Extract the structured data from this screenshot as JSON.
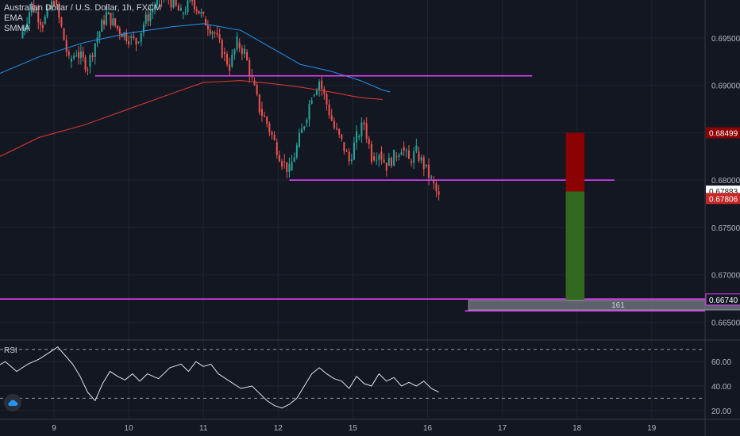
{
  "legend": {
    "symbol_title": "Australian Dollar / U.S. Dollar, 1h, FXCM",
    "indicator_1": "EMA",
    "indicator_2": "SMMA",
    "rsi_label": "RSI"
  },
  "colors": {
    "background": "#131722",
    "grid": "#1f2433",
    "up_candle": "#26a69a",
    "down_candle": "#ef5350",
    "ema": "#2196f3",
    "smma": "#e53935",
    "level": "#e040fb",
    "stop_zone": "#8b0000",
    "target_zone": "#33691e",
    "last_price_tag": "#c62828",
    "rsi_line": "#e0e3eb"
  },
  "chart_data": [
    {
      "type": "candlestick",
      "title": "Australian Dollar / U.S. Dollar, 1h, FXCM",
      "x_ticks": [
        "9",
        "10",
        "11",
        "12",
        "15",
        "16",
        "17",
        "18",
        "19"
      ],
      "y_ticks": [
        "0.69500",
        "0.69000",
        "0.68500",
        "0.68000",
        "0.67500",
        "0.67000",
        "0.66500"
      ],
      "ylim": [
        0.6632,
        0.699
      ],
      "grid": true,
      "close_path": [
        [
          8.55,
          0.695
        ],
        [
          8.7,
          0.6985
        ],
        [
          8.85,
          0.6965
        ],
        [
          9.0,
          0.699
        ],
        [
          9.1,
          0.696
        ],
        [
          9.2,
          0.6925
        ],
        [
          9.3,
          0.6935
        ],
        [
          9.45,
          0.692
        ],
        [
          9.55,
          0.6945
        ],
        [
          9.7,
          0.6975
        ],
        [
          9.85,
          0.696
        ],
        [
          10.0,
          0.695
        ],
        [
          10.1,
          0.6945
        ],
        [
          10.2,
          0.6965
        ],
        [
          10.35,
          0.6985
        ],
        [
          10.5,
          0.6995
        ],
        [
          10.7,
          0.6975
        ],
        [
          10.85,
          0.699
        ],
        [
          11.0,
          0.697
        ],
        [
          11.15,
          0.6955
        ],
        [
          11.25,
          0.6935
        ],
        [
          11.35,
          0.692
        ],
        [
          11.45,
          0.6945
        ],
        [
          11.55,
          0.6935
        ],
        [
          11.65,
          0.6905
        ],
        [
          11.75,
          0.6875
        ],
        [
          11.85,
          0.686
        ],
        [
          11.95,
          0.684
        ],
        [
          12.05,
          0.682
        ],
        [
          12.15,
          0.681
        ],
        [
          12.25,
          0.6835
        ],
        [
          12.35,
          0.686
        ],
        [
          12.45,
          0.689
        ],
        [
          12.55,
          0.6905
        ],
        [
          12.65,
          0.688
        ],
        [
          12.75,
          0.6855
        ],
        [
          12.85,
          0.684
        ],
        [
          12.95,
          0.682
        ],
        [
          13.05,
          0.6845
        ],
        [
          13.15,
          0.686
        ],
        [
          13.25,
          0.6825
        ],
        [
          13.35,
          0.683
        ],
        [
          13.45,
          0.6815
        ],
        [
          13.55,
          0.6825
        ],
        [
          13.65,
          0.6835
        ],
        [
          13.75,
          0.682
        ],
        [
          13.85,
          0.683
        ],
        [
          13.95,
          0.6815
        ],
        [
          14.05,
          0.68
        ],
        [
          14.15,
          0.6781
        ]
      ],
      "ema": [
        [
          8.2,
          0.691
        ],
        [
          8.8,
          0.693
        ],
        [
          9.4,
          0.6945
        ],
        [
          10.0,
          0.6955
        ],
        [
          10.6,
          0.6962
        ],
        [
          11.0,
          0.6965
        ],
        [
          11.5,
          0.6958
        ],
        [
          11.9,
          0.694
        ],
        [
          12.3,
          0.6922
        ],
        [
          12.7,
          0.6915
        ],
        [
          13.1,
          0.6905
        ],
        [
          13.4,
          0.6895
        ],
        [
          13.5,
          0.6893
        ]
      ],
      "smma": [
        [
          8.2,
          0.6822
        ],
        [
          8.8,
          0.6845
        ],
        [
          9.4,
          0.6858
        ],
        [
          10.0,
          0.6875
        ],
        [
          10.6,
          0.6892
        ],
        [
          11.0,
          0.6903
        ],
        [
          11.5,
          0.6905
        ],
        [
          11.9,
          0.6902
        ],
        [
          12.3,
          0.6898
        ],
        [
          12.7,
          0.6893
        ],
        [
          13.1,
          0.6887
        ],
        [
          13.4,
          0.6885
        ]
      ],
      "levels": [
        {
          "y": 0.691,
          "x_from": 9.55,
          "x_to": 15.4
        },
        {
          "y": 0.68,
          "x_from": 12.15,
          "x_to": 16.5
        },
        {
          "y": 0.66745,
          "x_from": 8.2,
          "x_to": 21.2
        },
        {
          "y": 0.6662,
          "x_from": 14.5,
          "x_to": 18.6
        }
      ],
      "position": {
        "x_from": 15.85,
        "x_to": 16.1,
        "stop_top": 0.68499,
        "entry": 0.6788,
        "target": 0.6673
      },
      "measure_box": {
        "x_from": 14.55,
        "x_to": 18.55,
        "y_top": 0.6673,
        "y_bottom": 0.6663,
        "label": "161"
      },
      "price_tags": [
        {
          "label": "0.68499",
          "y": 0.68499,
          "style": "stop"
        },
        {
          "label": "0.67883",
          "y": 0.67883,
          "style": "plain"
        },
        {
          "label": "0.67806",
          "y": 0.67806,
          "style": "last"
        },
        {
          "label": "0.66740",
          "y": 0.6674,
          "style": "level"
        }
      ]
    },
    {
      "type": "line",
      "title": "RSI",
      "y_ticks": [
        "60.00",
        "40.00",
        "20.00"
      ],
      "ylim": [
        14,
        77
      ],
      "bands": [
        70,
        30
      ],
      "values": [
        [
          8.2,
          55
        ],
        [
          8.35,
          60
        ],
        [
          8.5,
          52
        ],
        [
          8.65,
          58
        ],
        [
          8.8,
          62
        ],
        [
          8.95,
          68
        ],
        [
          9.05,
          72
        ],
        [
          9.15,
          65
        ],
        [
          9.25,
          58
        ],
        [
          9.35,
          48
        ],
        [
          9.45,
          35
        ],
        [
          9.55,
          28
        ],
        [
          9.65,
          42
        ],
        [
          9.75,
          52
        ],
        [
          9.85,
          48
        ],
        [
          9.95,
          45
        ],
        [
          10.05,
          50
        ],
        [
          10.15,
          44
        ],
        [
          10.25,
          50
        ],
        [
          10.4,
          46
        ],
        [
          10.55,
          55
        ],
        [
          10.7,
          58
        ],
        [
          10.8,
          52
        ],
        [
          10.9,
          60
        ],
        [
          11.0,
          56
        ],
        [
          11.1,
          58
        ],
        [
          11.2,
          50
        ],
        [
          11.35,
          44
        ],
        [
          11.5,
          38
        ],
        [
          11.65,
          40
        ],
        [
          11.75,
          34
        ],
        [
          11.85,
          28
        ],
        [
          11.95,
          24
        ],
        [
          12.05,
          22
        ],
        [
          12.15,
          25
        ],
        [
          12.25,
          30
        ],
        [
          12.35,
          40
        ],
        [
          12.45,
          50
        ],
        [
          12.55,
          55
        ],
        [
          12.65,
          50
        ],
        [
          12.75,
          46
        ],
        [
          12.85,
          44
        ],
        [
          12.95,
          38
        ],
        [
          13.05,
          48
        ],
        [
          13.15,
          42
        ],
        [
          13.25,
          40
        ],
        [
          13.35,
          50
        ],
        [
          13.45,
          44
        ],
        [
          13.55,
          47
        ],
        [
          13.65,
          40
        ],
        [
          13.75,
          43
        ],
        [
          13.85,
          40
        ],
        [
          13.95,
          44
        ],
        [
          14.05,
          38
        ],
        [
          14.15,
          35
        ]
      ]
    }
  ]
}
